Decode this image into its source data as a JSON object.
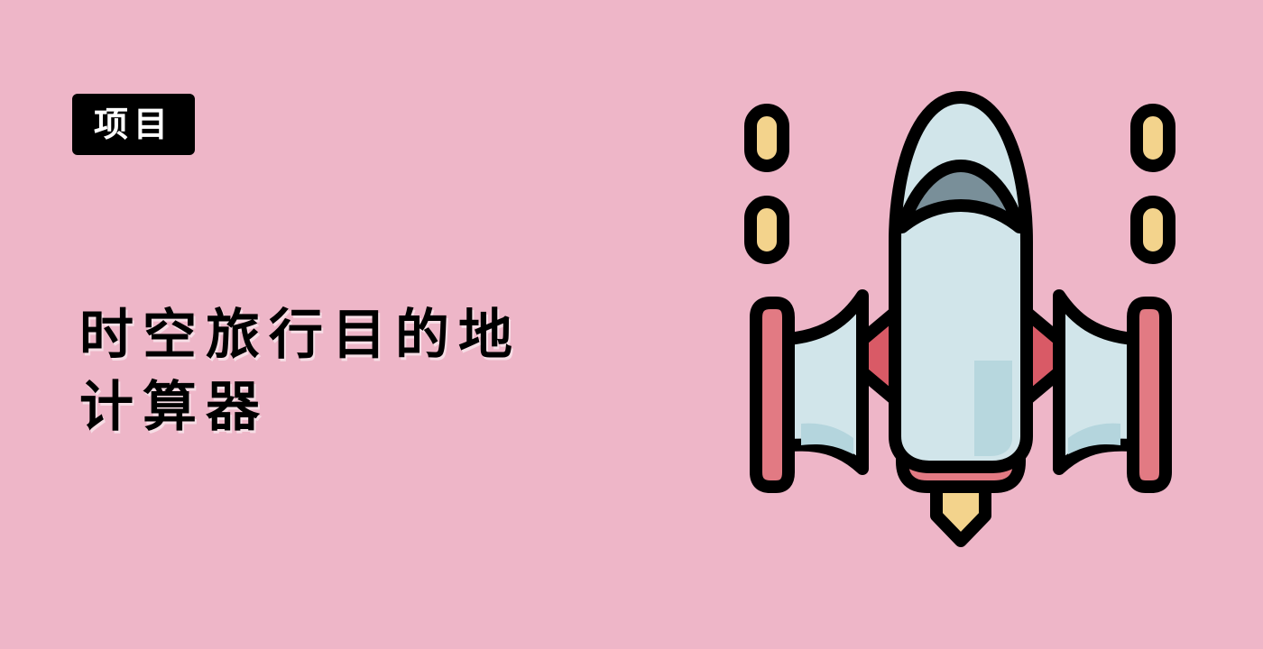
{
  "theme": {
    "background": "#eeb6c8",
    "tag_bg": "#000000",
    "tag_text": "#ffffff",
    "title_text": "#000000",
    "outline": "#000000",
    "rocket_body": "#d1e5ea",
    "rocket_shade": "#b4d5dd",
    "rocket_window": "#798f99",
    "rocket_red": "#e27a83",
    "rocket_red_dark": "#d95a66",
    "flame": "#f3d38c"
  },
  "tag": {
    "label": "项目"
  },
  "title": {
    "line1": "时空旅行目的地",
    "line2": "计算器"
  },
  "illustration": {
    "icon": "rocket-icon"
  }
}
